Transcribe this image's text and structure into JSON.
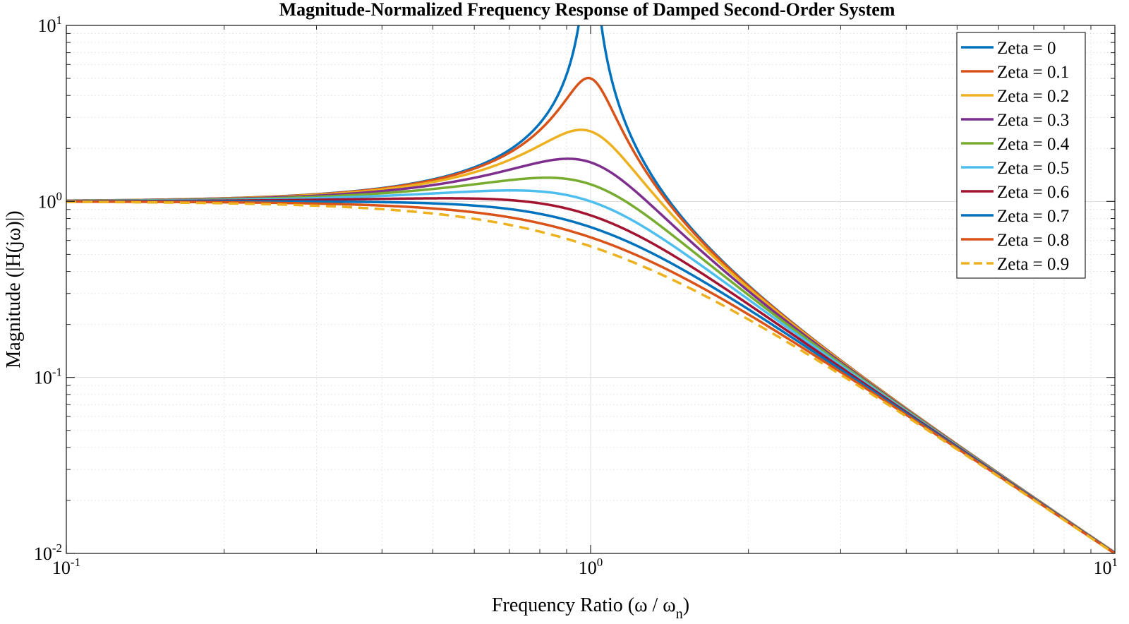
{
  "chart_data": {
    "type": "line",
    "title": "Magnitude-Normalized Frequency Response of Damped Second-Order System",
    "xlabel": "Frequency Ratio (ω / ω",
    "xlabel_sub": "n",
    "xlabel_end": ")",
    "ylabel": "Magnitude (|H(jω)|)",
    "xscale": "log",
    "yscale": "log",
    "xlim": [
      0.1,
      10
    ],
    "ylim": [
      0.01,
      10
    ],
    "grid": true,
    "legend_position": "top-right",
    "x_ticks": [
      {
        "base": "10",
        "exp": "-1",
        "value": 0.1
      },
      {
        "base": "10",
        "exp": "0",
        "value": 1
      },
      {
        "base": "10",
        "exp": "1",
        "value": 10
      }
    ],
    "y_ticks": [
      {
        "base": "10",
        "exp": "-2",
        "value": 0.01
      },
      {
        "base": "10",
        "exp": "-1",
        "value": 0.1
      },
      {
        "base": "10",
        "exp": "0",
        "value": 1
      },
      {
        "base": "10",
        "exp": "1",
        "value": 10
      }
    ],
    "x": [
      0.1,
      0.2,
      0.3,
      0.5,
      0.7,
      0.8,
      0.9,
      0.95,
      1.0,
      1.05,
      1.1,
      1.2,
      1.5,
      2,
      3,
      5,
      7,
      10
    ],
    "series": [
      {
        "name": "Zeta = 0",
        "zeta": 0,
        "color": "#0072BD",
        "dash": false,
        "values": [
          1.0101,
          1.0417,
          1.0989,
          1.3333,
          1.9608,
          2.7778,
          5.2632,
          10.2564,
          null,
          9.7561,
          4.7619,
          2.2727,
          0.8,
          0.3333,
          0.125,
          0.0417,
          0.0208,
          0.0101
        ]
      },
      {
        "name": "Zeta = 0.1",
        "zeta": 0.1,
        "color": "#D95319",
        "dash": false,
        "values": [
          1.01,
          1.0411,
          1.0971,
          1.3245,
          1.914,
          2.6261,
          4.1621,
          4.8689,
          5.0,
          4.6845,
          3.9226,
          2.1234,
          0.7899,
          0.3315,
          0.1248,
          0.0416,
          0.0208,
          0.0101
        ]
      },
      {
        "name": "Zeta = 0.2",
        "zeta": 0.2,
        "color": "#EDB120",
        "dash": false,
        "values": [
          1.0098,
          1.0393,
          1.0918,
          1.2998,
          1.7947,
          2.2819,
          2.5991,
          2.5931,
          2.5,
          2.3749,
          2.2039,
          1.7848,
          0.7614,
          0.3264,
          0.1241,
          0.0416,
          0.0208,
          0.0101
        ]
      },
      {
        "name": "Zeta = 0.3",
        "zeta": 0.3,
        "color": "#7E2F8E",
        "dash": false,
        "values": [
          1.0094,
          1.0362,
          1.0832,
          1.2625,
          1.6375,
          1.9138,
          1.8313,
          1.7385,
          1.6667,
          1.5778,
          1.4878,
          1.3183,
          0.7196,
          0.3186,
          0.123,
          0.0415,
          0.0208,
          0.0101
        ]
      },
      {
        "name": "Zeta = 0.4",
        "zeta": 0.4,
        "color": "#77AC30",
        "dash": false,
        "values": [
          1.0089,
          1.032,
          1.0718,
          1.2147,
          1.4761,
          1.5976,
          1.4018,
          1.3142,
          1.25,
          1.1853,
          1.1245,
          1.0196,
          0.6705,
          0.3087,
          0.1216,
          0.0414,
          0.0207,
          0.0101
        ]
      },
      {
        "name": "Zeta = 0.5",
        "zeta": 0.5,
        "color": "#4DBEEE",
        "dash": false,
        "values": [
          1.0082,
          1.0267,
          1.058,
          1.1547,
          1.307,
          1.3359,
          1.143,
          1.0538,
          1.0,
          0.9475,
          0.8987,
          0.8173,
          0.6189,
          0.2973,
          0.1198,
          0.0413,
          0.0207,
          0.0101
        ]
      },
      {
        "name": "Zeta = 0.6",
        "zeta": 0.6,
        "color": "#A2142F",
        "dash": false,
        "values": [
          1.0074,
          1.0205,
          1.0421,
          1.0942,
          1.151,
          1.1349,
          0.955,
          0.876,
          0.8333,
          0.7893,
          0.7487,
          0.6866,
          0.5697,
          0.2851,
          0.1178,
          0.0411,
          0.0206,
          0.0101
        ]
      },
      {
        "name": "Zeta = 0.7",
        "zeta": 0.7,
        "color": "#0072BD",
        "dash": false,
        "values": [
          1.0064,
          1.0137,
          1.0248,
          1.0264,
          1.0151,
          0.973,
          0.814,
          0.747,
          0.7143,
          0.6776,
          0.6441,
          0.5939,
          0.455,
          0.2727,
          0.1156,
          0.041,
          0.0206,
          0.0101
        ]
      },
      {
        "name": "Zeta = 0.8",
        "zeta": 0.8,
        "color": "#D95319",
        "dash": false,
        "values": [
          1.0054,
          1.0063,
          1.0069,
          0.974,
          0.8979,
          0.8391,
          0.704,
          0.6498,
          0.625,
          0.5951,
          0.5677,
          0.5259,
          0.4116,
          0.2602,
          0.1134,
          0.0408,
          0.0205,
          0.0101
        ]
      },
      {
        "name": "Zeta = 0.9",
        "zeta": 0.9,
        "color": "#EDB120",
        "dash": true,
        "values": [
          1.0041,
          0.9984,
          0.9874,
          0.9155,
          0.8001,
          0.74,
          0.6237,
          0.5787,
          0.5556,
          0.5305,
          0.5074,
          0.473,
          0.376,
          0.2479,
          0.111,
          0.0406,
          0.0205,
          0.0101
        ]
      }
    ]
  }
}
